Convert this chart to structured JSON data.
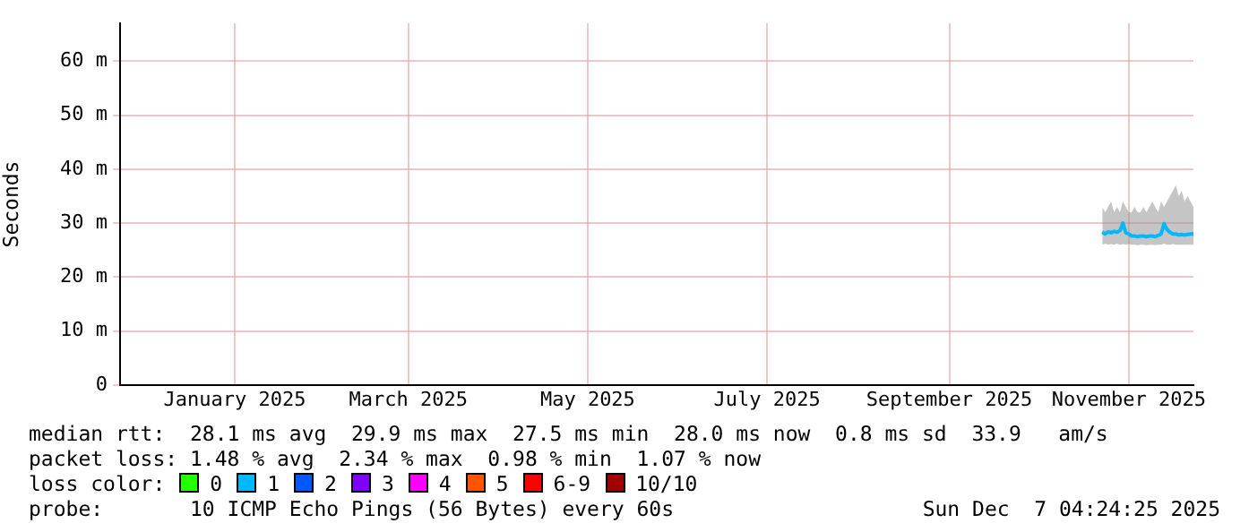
{
  "chart_data": {
    "type": "line",
    "ylabel": "Seconds",
    "grid": true,
    "legend": false,
    "marker": "none",
    "line_style": "solid",
    "x": [
      "2025-11-06",
      "2025-11-07",
      "2025-11-08",
      "2025-11-09",
      "2025-11-10",
      "2025-11-11",
      "2025-11-12",
      "2025-11-13",
      "2025-11-14",
      "2025-11-15",
      "2025-11-16",
      "2025-11-17",
      "2025-11-18",
      "2025-11-19",
      "2025-11-20",
      "2025-11-21",
      "2025-11-22",
      "2025-11-23",
      "2025-11-24",
      "2025-11-25",
      "2025-11-26",
      "2025-11-27",
      "2025-11-28",
      "2025-11-29",
      "2025-11-30",
      "2025-12-01",
      "2025-12-02",
      "2025-12-03",
      "2025-12-04",
      "2025-12-05",
      "2025-12-06",
      "2025-12-07"
    ],
    "xlim": [
      "2024-12-07",
      "2025-12-07"
    ],
    "xticks": [
      {
        "value": "2025-01-15",
        "label": "January 2025"
      },
      {
        "value": "2025-03-15",
        "label": "March 2025"
      },
      {
        "value": "2025-05-15",
        "label": "May 2025"
      },
      {
        "value": "2025-07-15",
        "label": "July 2025"
      },
      {
        "value": "2025-09-15",
        "label": "September 2025"
      },
      {
        "value": "2025-11-15",
        "label": "November 2025"
      }
    ],
    "ylim": [
      0,
      67
    ],
    "yticks": [
      0,
      {
        "value": 10,
        "label": "10 m"
      },
      {
        "value": 20,
        "label": "20 m"
      },
      {
        "value": 30,
        "label": "30 m"
      },
      {
        "value": 40,
        "label": "40 m"
      },
      {
        "value": 50,
        "label": "50 m"
      },
      {
        "value": 60,
        "label": "60 m"
      }
    ],
    "series": [
      {
        "color": "#00b8ff",
        "values": [
          28.3,
          28,
          28.4,
          28.2,
          28.5,
          28.3,
          28.6,
          30,
          28.2,
          28,
          27.6,
          27.6,
          27.5,
          27.6,
          27.6,
          27.5,
          27.6,
          27.6,
          27.5,
          27.7,
          28,
          29.9,
          28.8,
          28.3,
          28,
          28,
          27.8,
          27.9,
          27.8,
          27.9,
          28,
          28
        ],
        "lower": [
          26,
          26.2,
          26,
          26.1,
          26,
          26.2,
          26,
          26.1,
          26,
          26.1,
          26,
          26,
          25.9,
          26,
          26,
          25.9,
          26,
          26,
          25.9,
          26,
          26,
          26.2,
          26,
          26,
          26.1,
          26,
          26,
          26,
          26,
          26,
          26,
          26
        ],
        "upper": [
          33,
          32,
          33,
          34,
          32,
          33,
          32,
          34,
          33,
          32,
          32,
          33,
          32,
          32,
          33,
          32,
          33,
          34,
          33,
          32,
          34,
          33,
          34,
          35,
          36,
          37,
          35,
          36,
          34,
          35,
          34,
          33
        ]
      }
    ],
    "annotations": [
      "median rtt:  28.1 ms avg  29.9 ms max  27.5 ms min  28.0 ms now  0.8 ms sd  33.9   am/s",
      "packet loss: 1.48 % avg  2.34 % max  0.98 % min  1.07 % now",
      "loss color:",
      "0",
      "1",
      "2",
      "3",
      "4",
      "5",
      "6-9",
      "10/10",
      "probe:       10 ICMP Echo Pings (56 Bytes) every 60s",
      "Sun Dec  7 04:24:25 2025"
    ]
  }
}
